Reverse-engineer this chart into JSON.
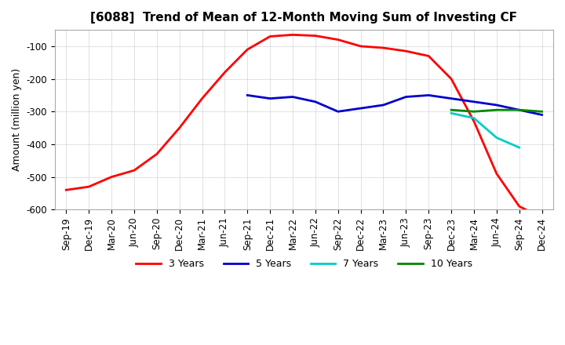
{
  "title": "[6088]  Trend of Mean of 12-Month Moving Sum of Investing CF",
  "ylabel": "Amount (million yen)",
  "ylim": [
    -600,
    -50
  ],
  "yticks": [
    -600,
    -500,
    -400,
    -300,
    -200,
    -100
  ],
  "background_color": "#ffffff",
  "grid_color": "#cccccc",
  "legend_entries": [
    "3 Years",
    "5 Years",
    "7 Years",
    "10 Years"
  ],
  "legend_colors": [
    "#ff0000",
    "#0000cc",
    "#00cccc",
    "#008800"
  ],
  "x_labels": [
    "Sep-19",
    "Dec-19",
    "Mar-20",
    "Jun-20",
    "Sep-20",
    "Dec-20",
    "Mar-21",
    "Jun-21",
    "Sep-21",
    "Dec-21",
    "Mar-22",
    "Jun-22",
    "Sep-22",
    "Dec-22",
    "Mar-23",
    "Jun-23",
    "Sep-23",
    "Dec-23",
    "Mar-24",
    "Jun-24",
    "Sep-24",
    "Dec-24"
  ],
  "series_3y": [
    -540,
    -530,
    -500,
    -480,
    -430,
    -350,
    -260,
    -180,
    -110,
    -70,
    -65,
    -68,
    -80,
    -100,
    -105,
    -115,
    -130,
    -200,
    -330,
    -490,
    -590,
    -625
  ],
  "series_5y": [
    null,
    null,
    null,
    null,
    null,
    null,
    null,
    null,
    -250,
    -260,
    -255,
    -270,
    -300,
    -290,
    -280,
    -255,
    -250,
    -260,
    -270,
    -280,
    -295,
    -310
  ],
  "series_7y": [
    null,
    null,
    null,
    null,
    null,
    null,
    null,
    null,
    null,
    null,
    null,
    null,
    null,
    null,
    null,
    null,
    null,
    -305,
    -320,
    -380,
    -410,
    null
  ],
  "series_10y": [
    null,
    null,
    null,
    null,
    null,
    null,
    null,
    null,
    null,
    null,
    null,
    null,
    null,
    null,
    null,
    null,
    null,
    -295,
    -300,
    -295,
    -295,
    -300
  ]
}
